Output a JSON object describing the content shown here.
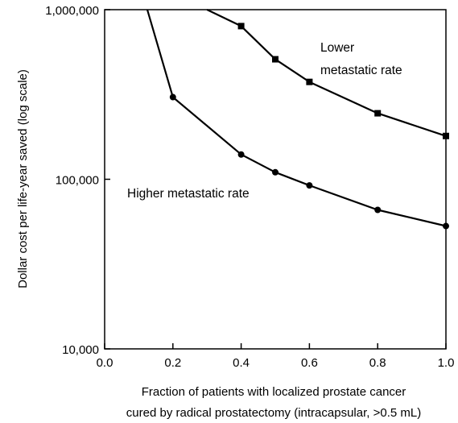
{
  "chart_data": {
    "type": "line",
    "title": "",
    "xlabel_lines": [
      "Fraction of patients with localized prostate cancer",
      "cured by radical prostatectomy (intracapsular, >0.5 mL)"
    ],
    "ylabel": "Dollar cost per life-year saved (log scale)",
    "xlim": [
      0.0,
      1.0
    ],
    "ylim": [
      10000,
      1000000
    ],
    "y_scale": "log",
    "grid": false,
    "x_ticks": [
      0.0,
      0.2,
      0.4,
      0.6,
      0.8,
      1.0
    ],
    "x_tick_labels": [
      "0.0",
      "0.2",
      "0.4",
      "0.6",
      "0.8",
      "1.0"
    ],
    "y_ticks": [
      10000,
      100000,
      1000000
    ],
    "y_tick_labels": [
      "10,000",
      "100,000",
      "1,000,000"
    ],
    "series": [
      {
        "annotation_lines": [
          "Lower",
          "metastatic rate"
        ],
        "marker": "square",
        "line_x": [
          0.3,
          0.4,
          0.5,
          0.6,
          0.8,
          1.0
        ],
        "line_y": [
          1000000,
          800000,
          510000,
          375000,
          245000,
          180000
        ],
        "points_x": [
          0.4,
          0.5,
          0.6,
          0.8,
          1.0
        ],
        "points_y": [
          800000,
          510000,
          375000,
          245000,
          180000
        ]
      },
      {
        "annotation_lines": [
          "Higher metastatic rate"
        ],
        "marker": "circle",
        "line_x": [
          0.125,
          0.2,
          0.4,
          0.5,
          0.6,
          0.8,
          1.0
        ],
        "line_y": [
          1000000,
          305000,
          140000,
          110000,
          92000,
          66000,
          53000
        ],
        "points_x": [
          0.2,
          0.4,
          0.5,
          0.6,
          0.8,
          1.0
        ],
        "points_y": [
          305000,
          140000,
          110000,
          92000,
          66000,
          53000
        ]
      }
    ]
  }
}
